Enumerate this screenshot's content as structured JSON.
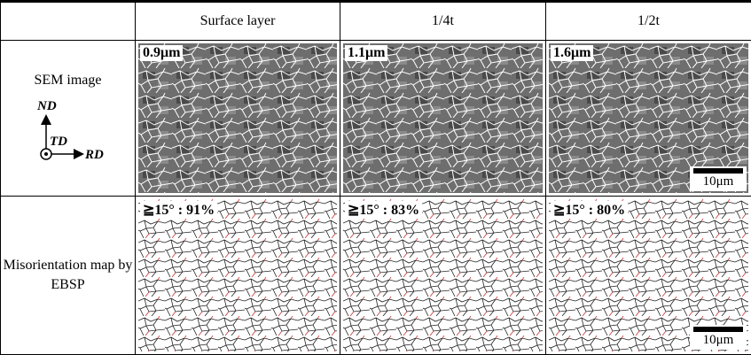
{
  "table": {
    "header": [
      "Surface layer",
      "1/4t",
      "1/2t"
    ],
    "rows": [
      {
        "label": "SEM image",
        "axes": {
          "nd": "ND",
          "td": "TD",
          "rd": "RD"
        },
        "cells": [
          "0.9μm",
          "1.1μm",
          "1.6μm"
        ],
        "scale_bar": "10μm"
      },
      {
        "label": "Misorientation map by EBSP",
        "cells": [
          "≧15° : 91%",
          "≧15° : 83%",
          "≧15° : 80%"
        ],
        "scale_bar": "10μm"
      }
    ]
  }
}
